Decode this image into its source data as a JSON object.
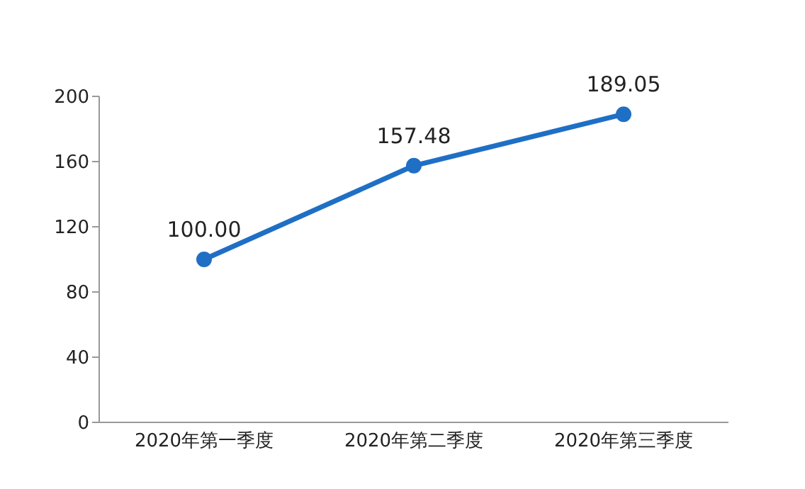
{
  "chart_data": {
    "type": "line",
    "categories": [
      "2020年第一季度",
      "2020年第二季度",
      "2020年第三季度"
    ],
    "series": [
      {
        "color": "#1f6fc5",
        "values": [
          100,
          157.48,
          189.05
        ],
        "value_labels": [
          "100.00",
          "157.48",
          "189.05"
        ]
      }
    ],
    "ylim": [
      0,
      200
    ],
    "yticks": [
      0,
      40,
      80,
      120,
      160,
      200
    ],
    "grid": false,
    "legend": false,
    "marker": "circle",
    "line_style": "solid"
  }
}
